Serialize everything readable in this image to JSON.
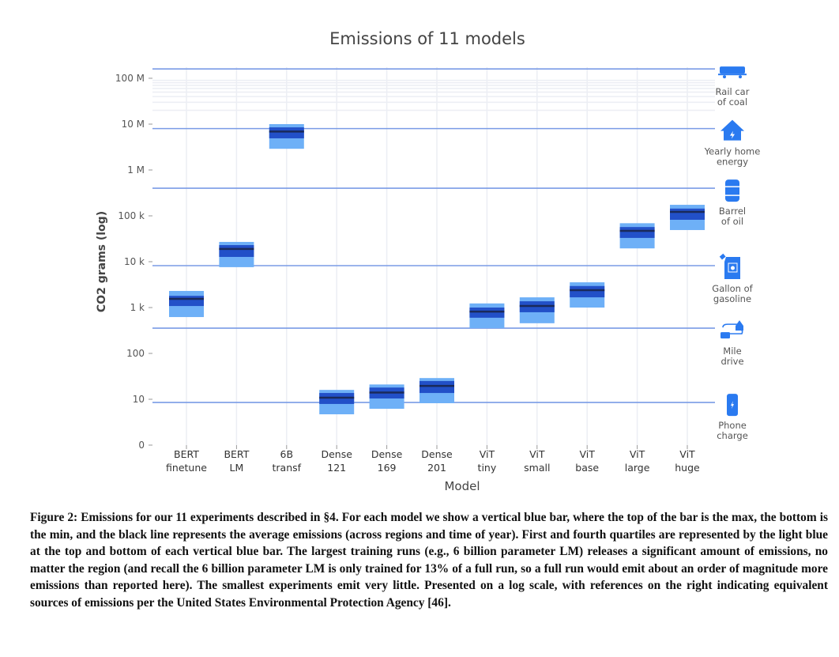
{
  "chart_data": {
    "type": "box",
    "title": "Emissions of 11 models",
    "xlabel": "Model",
    "ylabel": "CO2 grams (log)",
    "yscale": "log",
    "ylim": [
      1,
      200000000
    ],
    "yticks": [
      {
        "value": 100000000,
        "label": "100 M"
      },
      {
        "value": 10000000,
        "label": "10 M"
      },
      {
        "value": 1000000,
        "label": "1 M"
      },
      {
        "value": 100000,
        "label": "100 k"
      },
      {
        "value": 10000,
        "label": "10 k"
      },
      {
        "value": 1000,
        "label": "1 k"
      },
      {
        "value": 100,
        "label": "100"
      },
      {
        "value": 10,
        "label": "10"
      },
      {
        "value": 1,
        "label": "0"
      }
    ],
    "categories": [
      [
        "BERT",
        "finetune"
      ],
      [
        "BERT",
        "LM"
      ],
      [
        "6B",
        "transf"
      ],
      [
        "Dense",
        "121"
      ],
      [
        "Dense",
        "169"
      ],
      [
        "Dense",
        "201"
      ],
      [
        "ViT",
        "tiny"
      ],
      [
        "ViT",
        "small"
      ],
      [
        "ViT",
        "base"
      ],
      [
        "ViT",
        "large"
      ],
      [
        "ViT",
        "huge"
      ]
    ],
    "series": [
      {
        "name": "min",
        "values": [
          620,
          7600,
          2900000,
          4.7,
          6.2,
          8.2,
          355,
          455,
          1000,
          19500,
          49000
        ]
      },
      {
        "name": "q1",
        "values": [
          1080,
          12700,
          4900000,
          7.9,
          10.4,
          13.7,
          600,
          790,
          1670,
          33000,
          82000
        ]
      },
      {
        "name": "mean",
        "values": [
          1550,
          19000,
          6900000,
          10.8,
          14,
          19.5,
          815,
          1080,
          2400,
          47000,
          122000
        ]
      },
      {
        "name": "q3",
        "values": [
          1800,
          23000,
          8500000,
          13.7,
          18,
          25,
          1000,
          1370,
          2950,
          57000,
          144000
        ]
      },
      {
        "name": "max",
        "values": [
          2300,
          27000,
          10000000,
          16,
          21,
          29,
          1230,
          1670,
          3550,
          69000,
          174000
        ]
      }
    ],
    "references": [
      {
        "label": [
          "Rail car",
          "of coal"
        ],
        "value": 160000000,
        "icon": "rail-car-icon"
      },
      {
        "label": [
          "Yearly home",
          "energy"
        ],
        "value": 8000000,
        "icon": "house-icon"
      },
      {
        "label": [
          "Barrel",
          "of oil"
        ],
        "value": 400000,
        "icon": "barrel-icon"
      },
      {
        "label": [
          "Gallon of",
          "gasoline"
        ],
        "value": 8200,
        "icon": "gas-can-icon"
      },
      {
        "label": [
          "Mile",
          "drive"
        ],
        "value": 355,
        "icon": "truck-route-icon"
      },
      {
        "label": [
          "Phone",
          "charge"
        ],
        "value": 8.5,
        "icon": "phone-icon"
      }
    ],
    "colors": {
      "outer": "#6eb0f7",
      "inner": "#2250c8",
      "mean": "#1a2a5a",
      "ref": "#7a9be6",
      "icon": "#2a7af0",
      "grid": "#eceef4"
    },
    "grid": true
  },
  "caption": "Figure 2: Emissions for our 11 experiments described in §4. For each model we show a vertical blue bar, where the top of the bar is the max, the bottom is the min, and the black line represents the average emissions (across regions and time of year). First and fourth quartiles are represented by the light blue at the top and bottom of each vertical blue bar. The largest training runs (e.g., 6 billion parameter LM) releases a significant amount of emissions, no matter the region (and recall the 6 billion parameter LM is only trained for 13% of a full run, so a full run would emit about an order of magnitude more emissions than reported here). The smallest experiments emit very little. Presented on a log scale, with references on the right indicating equivalent sources of emissions per the United States Environmental Protection Agency [46]."
}
